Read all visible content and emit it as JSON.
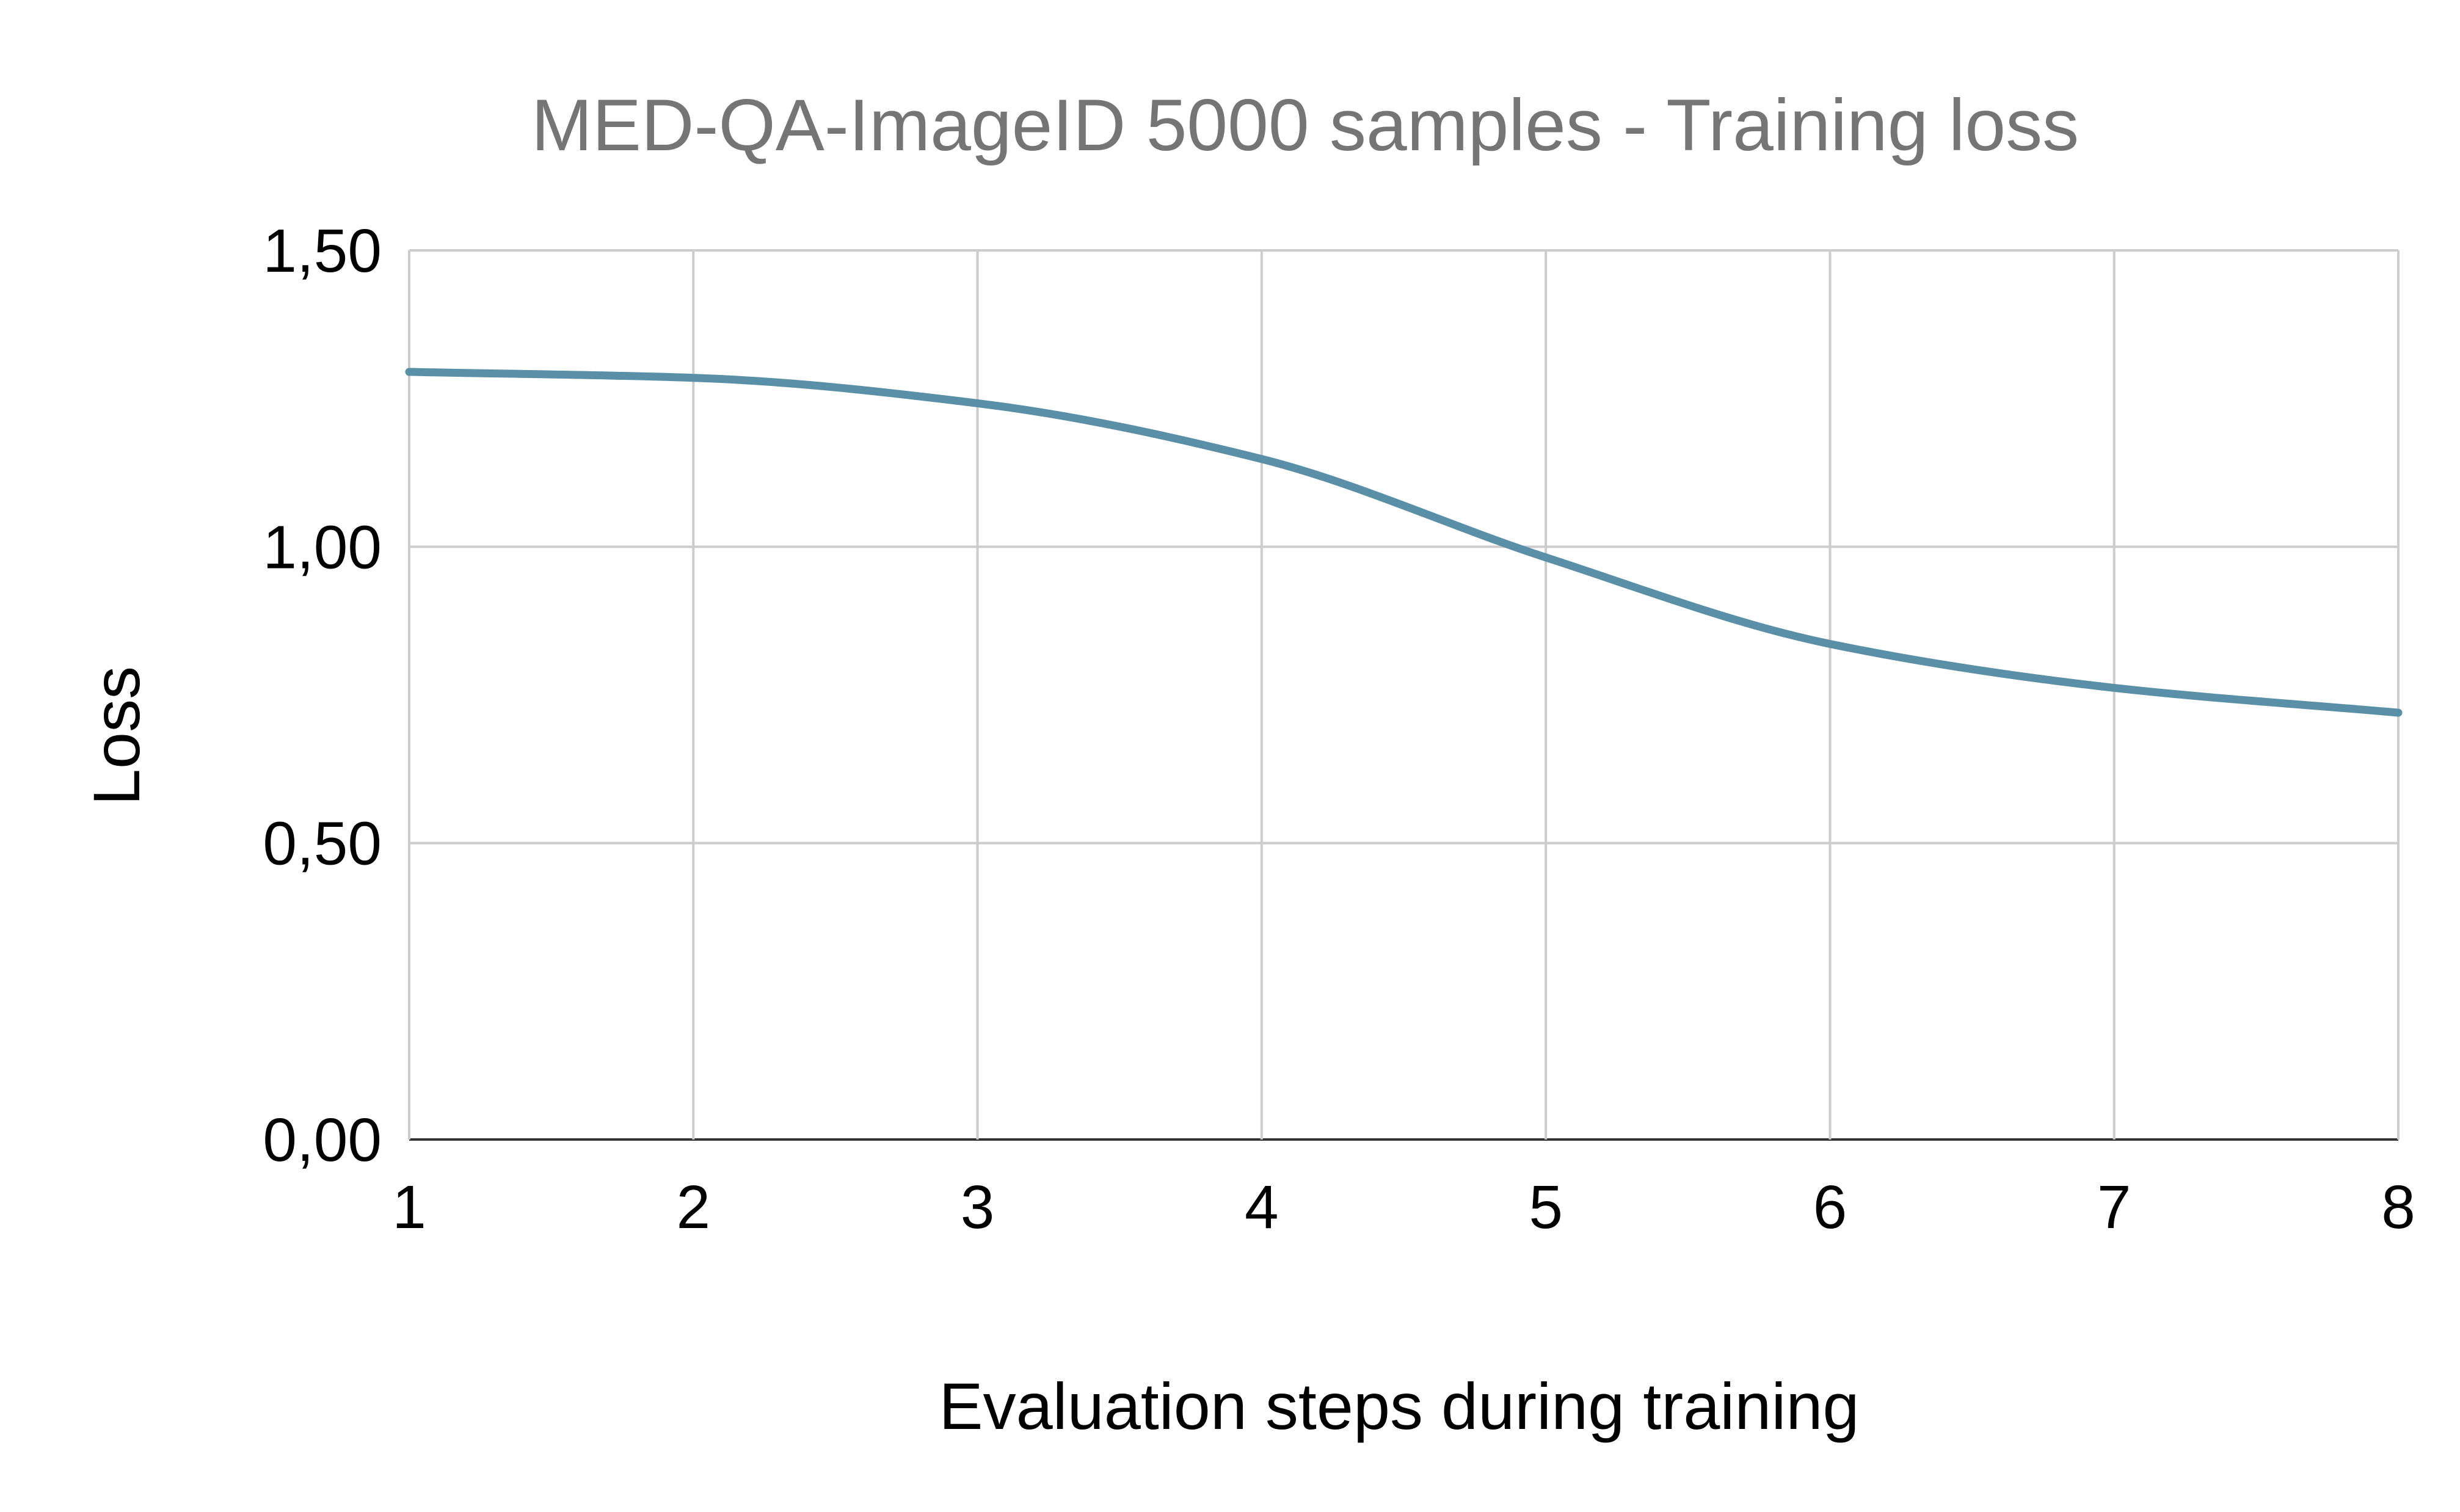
{
  "chart_data": {
    "type": "line",
    "title": "MED-QA-ImageID 5000 samples - Training loss",
    "xlabel": "Evaluation steps during training",
    "ylabel": "Loss",
    "x": [
      1,
      2,
      3,
      4,
      5,
      6,
      7,
      8
    ],
    "x_tick_labels": [
      "1",
      "2",
      "3",
      "4",
      "5",
      "6",
      "7",
      "8"
    ],
    "xlim": [
      1,
      8
    ],
    "y_ticks": [
      0,
      0.5,
      1.0,
      1.5
    ],
    "y_tick_labels": [
      "0,00",
      "0,50",
      "1,00",
      "1,50"
    ],
    "ylim": [
      0,
      1.5
    ],
    "grid": true,
    "legend": "none",
    "smooth": true,
    "series": [
      {
        "values": [
          1.295,
          1.285,
          1.242,
          1.148,
          0.982,
          0.836,
          0.762,
          0.72
        ],
        "color": "#5a8fa8"
      }
    ]
  }
}
